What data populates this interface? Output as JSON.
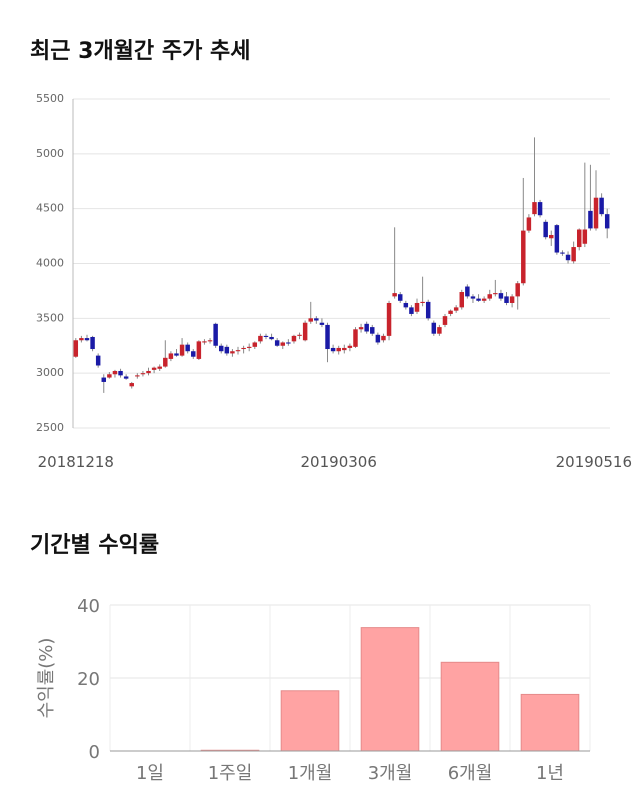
{
  "chart_data": [
    {
      "type": "candlestick",
      "title": "최근 3개월간 주가 추세",
      "categories": [
        "20181218",
        null,
        null,
        null,
        null,
        null,
        null,
        null,
        null,
        null,
        null,
        null,
        null,
        null,
        null,
        null,
        null,
        null,
        null,
        null,
        null,
        null,
        null,
        null,
        null,
        null,
        null,
        null,
        null,
        null,
        null,
        null,
        null,
        null,
        null,
        null,
        null,
        null,
        null,
        null,
        null,
        null,
        null,
        null,
        null,
        null,
        null,
        "20190306",
        null,
        null,
        null,
        null,
        null,
        null,
        null,
        null,
        null,
        null,
        null,
        null,
        null,
        null,
        null,
        null,
        null,
        null,
        null,
        null,
        null,
        null,
        null,
        null,
        null,
        null,
        null,
        null,
        null,
        null,
        null,
        null,
        null,
        null,
        null,
        null,
        null,
        null,
        null,
        null,
        null,
        null,
        null,
        null,
        null,
        null,
        null,
        "20190516"
      ],
      "open": [
        3150,
        3300,
        3320,
        3330,
        3160,
        2960,
        2960,
        2990,
        3020,
        2970,
        2880,
        2970,
        2990,
        3000,
        3030,
        3040,
        3060,
        3130,
        3180,
        3160,
        3260,
        3200,
        3130,
        3280,
        3290,
        3450,
        3250,
        3240,
        3180,
        3200,
        3220,
        3230,
        3240,
        3290,
        3340,
        3330,
        3300,
        3250,
        3280,
        3290,
        3340,
        3300,
        3470,
        3500,
        3460,
        3440,
        3230,
        3200,
        3210,
        3230,
        3240,
        3400,
        3450,
        3420,
        3350,
        3300,
        3340,
        3700,
        3720,
        3640,
        3600,
        3560,
        3640,
        3650,
        3460,
        3360,
        3440,
        3540,
        3570,
        3600,
        3790,
        3700,
        3680,
        3660,
        3680,
        3720,
        3730,
        3700,
        3640,
        3700,
        3820,
        4300,
        4450,
        4560,
        4380,
        4230,
        4350,
        4100,
        4080,
        4020,
        4150,
        4180,
        4480,
        4320,
        4600,
        4450
      ],
      "high": [
        3320,
        3340,
        3350,
        3340,
        3180,
        2990,
        3010,
        3030,
        3040,
        2990,
        2920,
        3000,
        3020,
        3050,
        3060,
        3080,
        3300,
        3200,
        3220,
        3320,
        3280,
        3220,
        3300,
        3310,
        3320,
        3460,
        3270,
        3260,
        3220,
        3240,
        3250,
        3270,
        3290,
        3360,
        3360,
        3360,
        3320,
        3290,
        3310,
        3350,
        3370,
        3480,
        3650,
        3520,
        3500,
        3460,
        3260,
        3250,
        3260,
        3270,
        3420,
        3450,
        3470,
        3440,
        3370,
        3360,
        3660,
        4330,
        3740,
        3660,
        3620,
        3680,
        3880,
        3670,
        3480,
        3440,
        3540,
        3580,
        3620,
        3760,
        3810,
        3720,
        3720,
        3700,
        3760,
        3850,
        3760,
        3740,
        3720,
        3840,
        4780,
        4450,
        5150,
        4580,
        4400,
        4300,
        4360,
        4120,
        4110,
        4200,
        4320,
        4920,
        4900,
        4850,
        4640,
        4500
      ],
      "low": [
        3140,
        3280,
        3290,
        3200,
        3050,
        2820,
        2950,
        2960,
        2960,
        2940,
        2860,
        2950,
        2970,
        2980,
        3000,
        3020,
        3050,
        3110,
        3150,
        3150,
        3180,
        3130,
        3120,
        3260,
        3270,
        3230,
        3180,
        3160,
        3150,
        3170,
        3180,
        3200,
        3220,
        3270,
        3310,
        3300,
        3240,
        3220,
        3250,
        3270,
        3310,
        3290,
        3450,
        3450,
        3420,
        3100,
        3180,
        3170,
        3180,
        3200,
        3230,
        3370,
        3360,
        3340,
        3260,
        3280,
        3300,
        3680,
        3640,
        3580,
        3520,
        3540,
        3610,
        3480,
        3340,
        3340,
        3420,
        3520,
        3550,
        3580,
        3680,
        3640,
        3650,
        3640,
        3660,
        3700,
        3660,
        3620,
        3600,
        3580,
        3800,
        4280,
        4430,
        4420,
        4220,
        4160,
        4080,
        4070,
        4000,
        4000,
        4120,
        4150,
        4300,
        4300,
        4430,
        4230
      ],
      "close": [
        3300,
        3320,
        3300,
        3220,
        3070,
        2920,
        2990,
        3020,
        2980,
        2950,
        2910,
        2980,
        3000,
        3020,
        3050,
        3060,
        3140,
        3180,
        3160,
        3260,
        3200,
        3150,
        3290,
        3290,
        3300,
        3250,
        3200,
        3180,
        3200,
        3210,
        3230,
        3240,
        3280,
        3340,
        3330,
        3310,
        3250,
        3280,
        3270,
        3340,
        3350,
        3460,
        3500,
        3480,
        3440,
        3220,
        3200,
        3230,
        3230,
        3250,
        3400,
        3420,
        3380,
        3360,
        3280,
        3340,
        3640,
        3730,
        3660,
        3600,
        3540,
        3640,
        3650,
        3500,
        3360,
        3420,
        3520,
        3570,
        3600,
        3740,
        3700,
        3680,
        3660,
        3680,
        3720,
        3730,
        3680,
        3640,
        3700,
        3820,
        4300,
        4420,
        4560,
        4440,
        4240,
        4260,
        4100,
        4090,
        4030,
        4150,
        4310,
        4310,
        4320,
        4600,
        4450,
        4320
      ],
      "up_color": "#c8232c",
      "down_color": "#1a1aa6",
      "ylim": [
        2500,
        5500
      ],
      "yticks": [
        2500,
        3000,
        3500,
        4000,
        4500,
        5000,
        5500
      ],
      "grid": true
    },
    {
      "type": "bar",
      "title": "기간별 수익률",
      "y_label": "수익률(%)",
      "categories": [
        "1일",
        "1주일",
        "1개월",
        "3개월",
        "6개월",
        "1년"
      ],
      "values": [
        0,
        0.2,
        16.5,
        33.8,
        24.3,
        15.5
      ],
      "color": "#ffa3a3",
      "ylim": [
        0,
        40
      ],
      "yticks": [
        0,
        20,
        40
      ],
      "grid": true
    }
  ]
}
